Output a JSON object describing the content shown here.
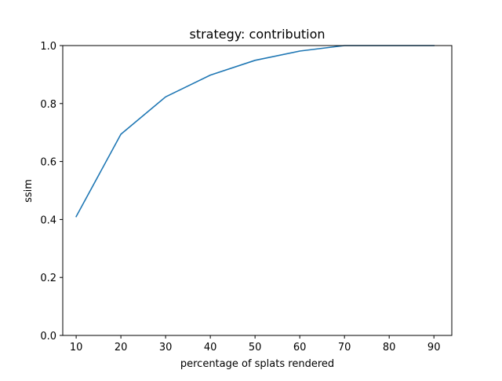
{
  "chart_data": {
    "type": "line",
    "title": "strategy: contribution",
    "xlabel": "percentage of splats rendered",
    "ylabel": "ssim",
    "x": [
      10,
      20,
      30,
      40,
      50,
      60,
      70,
      80,
      90
    ],
    "series": [
      {
        "values": [
          0.41,
          0.694,
          0.823,
          0.898,
          0.949,
          0.981,
          1.0,
          1.0,
          1.0
        ],
        "color": "#1f77b4"
      }
    ],
    "xlim": [
      7,
      94
    ],
    "ylim": [
      0.0,
      1.0
    ],
    "xticks": [
      10,
      20,
      30,
      40,
      50,
      60,
      70,
      80,
      90
    ],
    "yticks": [
      "0.0",
      "0.2",
      "0.4",
      "0.6",
      "0.8",
      "1.0"
    ],
    "grid": false,
    "legend": "none"
  }
}
